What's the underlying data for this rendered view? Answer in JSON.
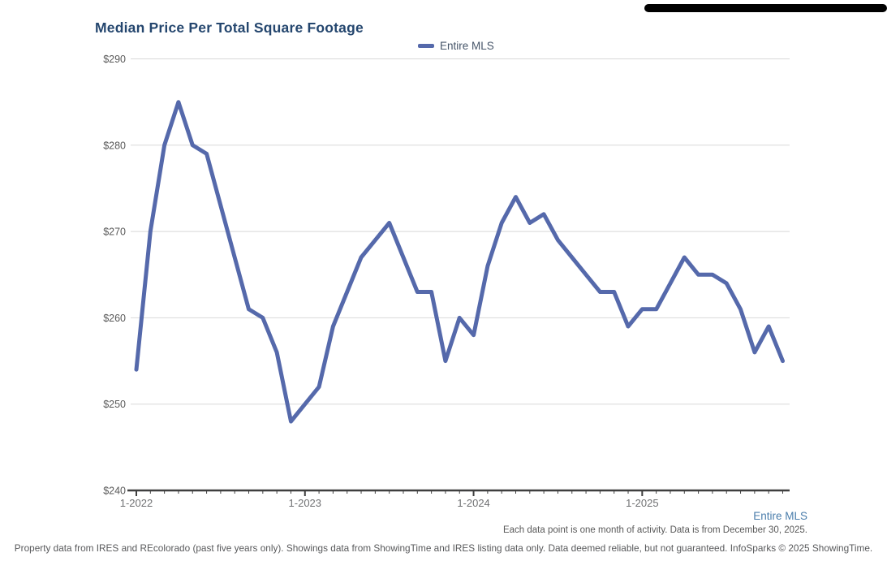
{
  "title": "Median Price Per Total Square Footage",
  "legend": {
    "label": "Entire MLS",
    "swatch_color": "#5569ab"
  },
  "chart_data": {
    "type": "line",
    "title": "Median Price Per Total Square Footage",
    "xlabel": "",
    "ylabel": "",
    "ylim": [
      240,
      290
    ],
    "grid": "horizontal",
    "legend_position": "top-center",
    "y_ticks": [
      {
        "label": "$290",
        "value": 290
      },
      {
        "label": "$280",
        "value": 280
      },
      {
        "label": "$270",
        "value": 270
      },
      {
        "label": "$260",
        "value": 260
      },
      {
        "label": "$250",
        "value": 250
      },
      {
        "label": "$240",
        "value": 240
      }
    ],
    "x_tick_labels": [
      "1-2022",
      "1-2023",
      "1-2024",
      "1-2025"
    ],
    "months": [
      "1-2022",
      "2-2022",
      "3-2022",
      "4-2022",
      "5-2022",
      "6-2022",
      "7-2022",
      "8-2022",
      "9-2022",
      "10-2022",
      "11-2022",
      "12-2022",
      "1-2023",
      "2-2023",
      "3-2023",
      "4-2023",
      "5-2023",
      "6-2023",
      "7-2023",
      "8-2023",
      "9-2023",
      "10-2023",
      "11-2023",
      "12-2023",
      "1-2024",
      "2-2024",
      "3-2024",
      "4-2024",
      "5-2024",
      "6-2024",
      "7-2024",
      "8-2024",
      "9-2024",
      "10-2024",
      "11-2024",
      "12-2024",
      "1-2025",
      "2-2025",
      "3-2025",
      "4-2025",
      "5-2025",
      "6-2025",
      "7-2025",
      "8-2025",
      "9-2025",
      "10-2025",
      "11-2025"
    ],
    "series": [
      {
        "name": "Entire MLS",
        "color": "#5569ab",
        "values": [
          254,
          270,
          280,
          285,
          280,
          279,
          273,
          267,
          261,
          260,
          256,
          248,
          250,
          252,
          259,
          263,
          267,
          269,
          271,
          267,
          263,
          263,
          255,
          260,
          258,
          266,
          271,
          274,
          271,
          272,
          269,
          267,
          265,
          263,
          263,
          259,
          261,
          261,
          264,
          267,
          265,
          265,
          264,
          261,
          256,
          259,
          255
        ]
      }
    ]
  },
  "footnotes": {
    "entire_mls_link": "Entire MLS",
    "data_note": "Each data point is one month of activity. Data is from December 30, 2025.",
    "disclaimer": "Property data from IRES and REcolorado (past five years only). Showings data from ShowingTime and IRES listing data only. Data deemed reliable, but not guaranteed. InfoSparks © 2025 ShowingTime."
  },
  "colors": {
    "line": "#5569ab",
    "title_text": "#24466e",
    "grid_line": "#d8d8d8",
    "axis_line": "#3f3f3f",
    "tick_label": "#6f7072",
    "footnote_gray": "#58595b",
    "link_blue": "#4a7dab"
  }
}
